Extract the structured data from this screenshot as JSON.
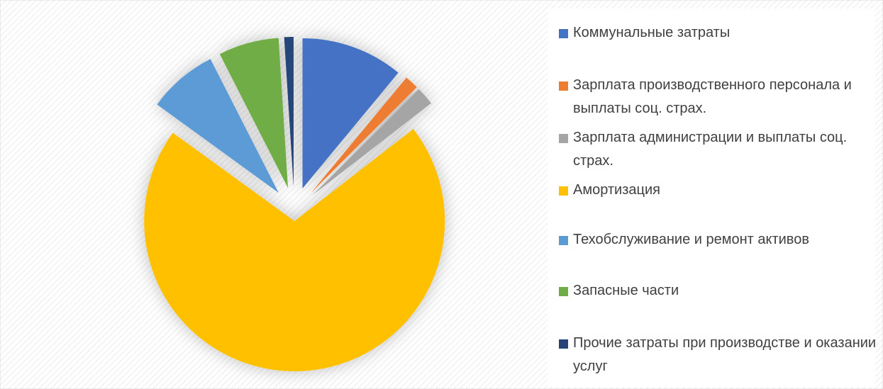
{
  "chart_data": {
    "type": "pie",
    "categories": [
      "Коммунальные затраты",
      "Зарплата производственного персонала и выплаты соц. страх.",
      "Зарплата администрации и выплаты соц. страх.",
      "Амортизация",
      "Техобслуживание и ремонт активов",
      "Запасные части",
      "Прочие затраты при производстве и оказании услуг"
    ],
    "values": [
      11,
      1.5,
      2,
      70.5,
      7.5,
      6.5,
      1
    ],
    "colors": [
      "#4472c4",
      "#ed7d31",
      "#a5a5a5",
      "#ffc000",
      "#5b9bd5",
      "#70ad47",
      "#264478"
    ],
    "legend": "right"
  }
}
